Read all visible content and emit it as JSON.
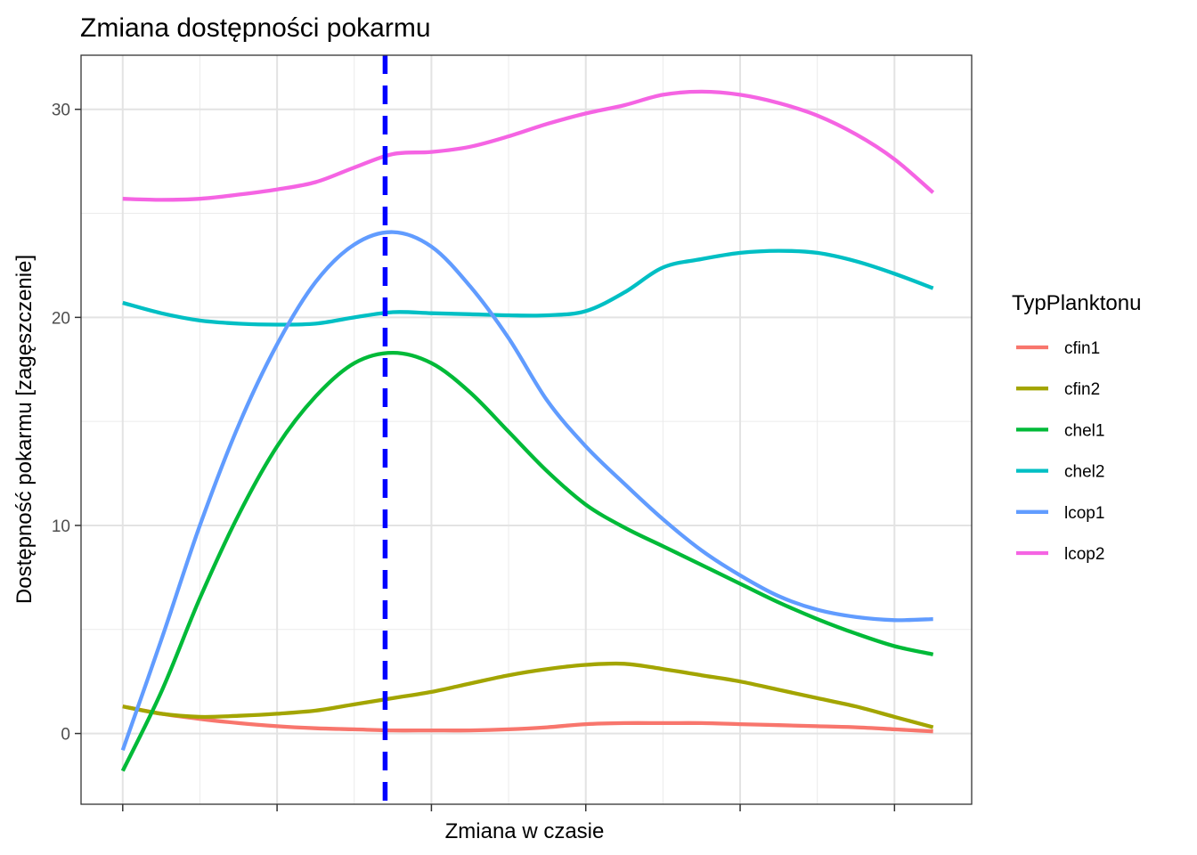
{
  "chart_data": {
    "type": "line",
    "title": "Zmiana dostępności pokarmu",
    "xlabel": "Zmiana w czasie",
    "ylabel": "Dostępność pokarmu [zagęszczenie]",
    "x_tick_labels": [],
    "xlim": [
      -0.27,
      5.5
    ],
    "ylim": [
      -3.4,
      32.6
    ],
    "y_ticks": [
      0,
      10,
      20,
      30
    ],
    "y_tick_labels": [
      "0",
      "10",
      "20",
      "30"
    ],
    "grid": true,
    "legend": {
      "title": "TypPlanktonu",
      "position": "right"
    },
    "vline": {
      "x": 1.7,
      "color": "#0000ff",
      "style": "dashed"
    },
    "x": [
      0,
      0.25,
      0.5,
      0.75,
      1.0,
      1.25,
      1.5,
      1.75,
      2.0,
      2.25,
      2.5,
      2.75,
      3.0,
      3.25,
      3.5,
      3.75,
      4.0,
      4.25,
      4.5,
      4.75,
      5.0,
      5.25
    ],
    "series": [
      {
        "name": "cfin1",
        "color": "#F8766D",
        "values": [
          1.3,
          0.95,
          0.7,
          0.5,
          0.35,
          0.25,
          0.2,
          0.15,
          0.15,
          0.15,
          0.2,
          0.3,
          0.45,
          0.5,
          0.5,
          0.5,
          0.45,
          0.4,
          0.35,
          0.3,
          0.2,
          0.1
        ]
      },
      {
        "name": "cfin2",
        "color": "#A3A500",
        "values": [
          1.3,
          0.95,
          0.8,
          0.85,
          0.95,
          1.1,
          1.4,
          1.7,
          2.0,
          2.4,
          2.8,
          3.1,
          3.3,
          3.35,
          3.1,
          2.8,
          2.5,
          2.1,
          1.7,
          1.3,
          0.8,
          0.3
        ]
      },
      {
        "name": "chel1",
        "color": "#00BA38",
        "values": [
          -1.8,
          2.0,
          6.5,
          10.5,
          13.8,
          16.2,
          17.8,
          18.3,
          17.8,
          16.4,
          14.5,
          12.6,
          11.0,
          9.9,
          9.0,
          8.1,
          7.2,
          6.3,
          5.5,
          4.8,
          4.2,
          3.8
        ]
      },
      {
        "name": "chel2",
        "color": "#00BFC4",
        "values": [
          20.7,
          20.2,
          19.85,
          19.7,
          19.65,
          19.7,
          20.0,
          20.25,
          20.2,
          20.15,
          20.1,
          20.1,
          20.3,
          21.2,
          22.4,
          22.8,
          23.1,
          23.2,
          23.1,
          22.7,
          22.1,
          21.4
        ]
      },
      {
        "name": "lcop1",
        "color": "#619CFF",
        "values": [
          -0.8,
          4.5,
          10.0,
          14.8,
          18.7,
          21.7,
          23.5,
          24.1,
          23.4,
          21.5,
          19.0,
          16.0,
          13.8,
          12.0,
          10.3,
          8.8,
          7.6,
          6.6,
          5.95,
          5.6,
          5.45,
          5.5
        ]
      },
      {
        "name": "lcop2",
        "color": "#F564E3",
        "values": [
          25.7,
          25.65,
          25.7,
          25.9,
          26.15,
          26.5,
          27.2,
          27.85,
          27.95,
          28.2,
          28.7,
          29.3,
          29.8,
          30.2,
          30.7,
          30.85,
          30.7,
          30.3,
          29.7,
          28.8,
          27.6,
          26.0
        ]
      }
    ]
  }
}
